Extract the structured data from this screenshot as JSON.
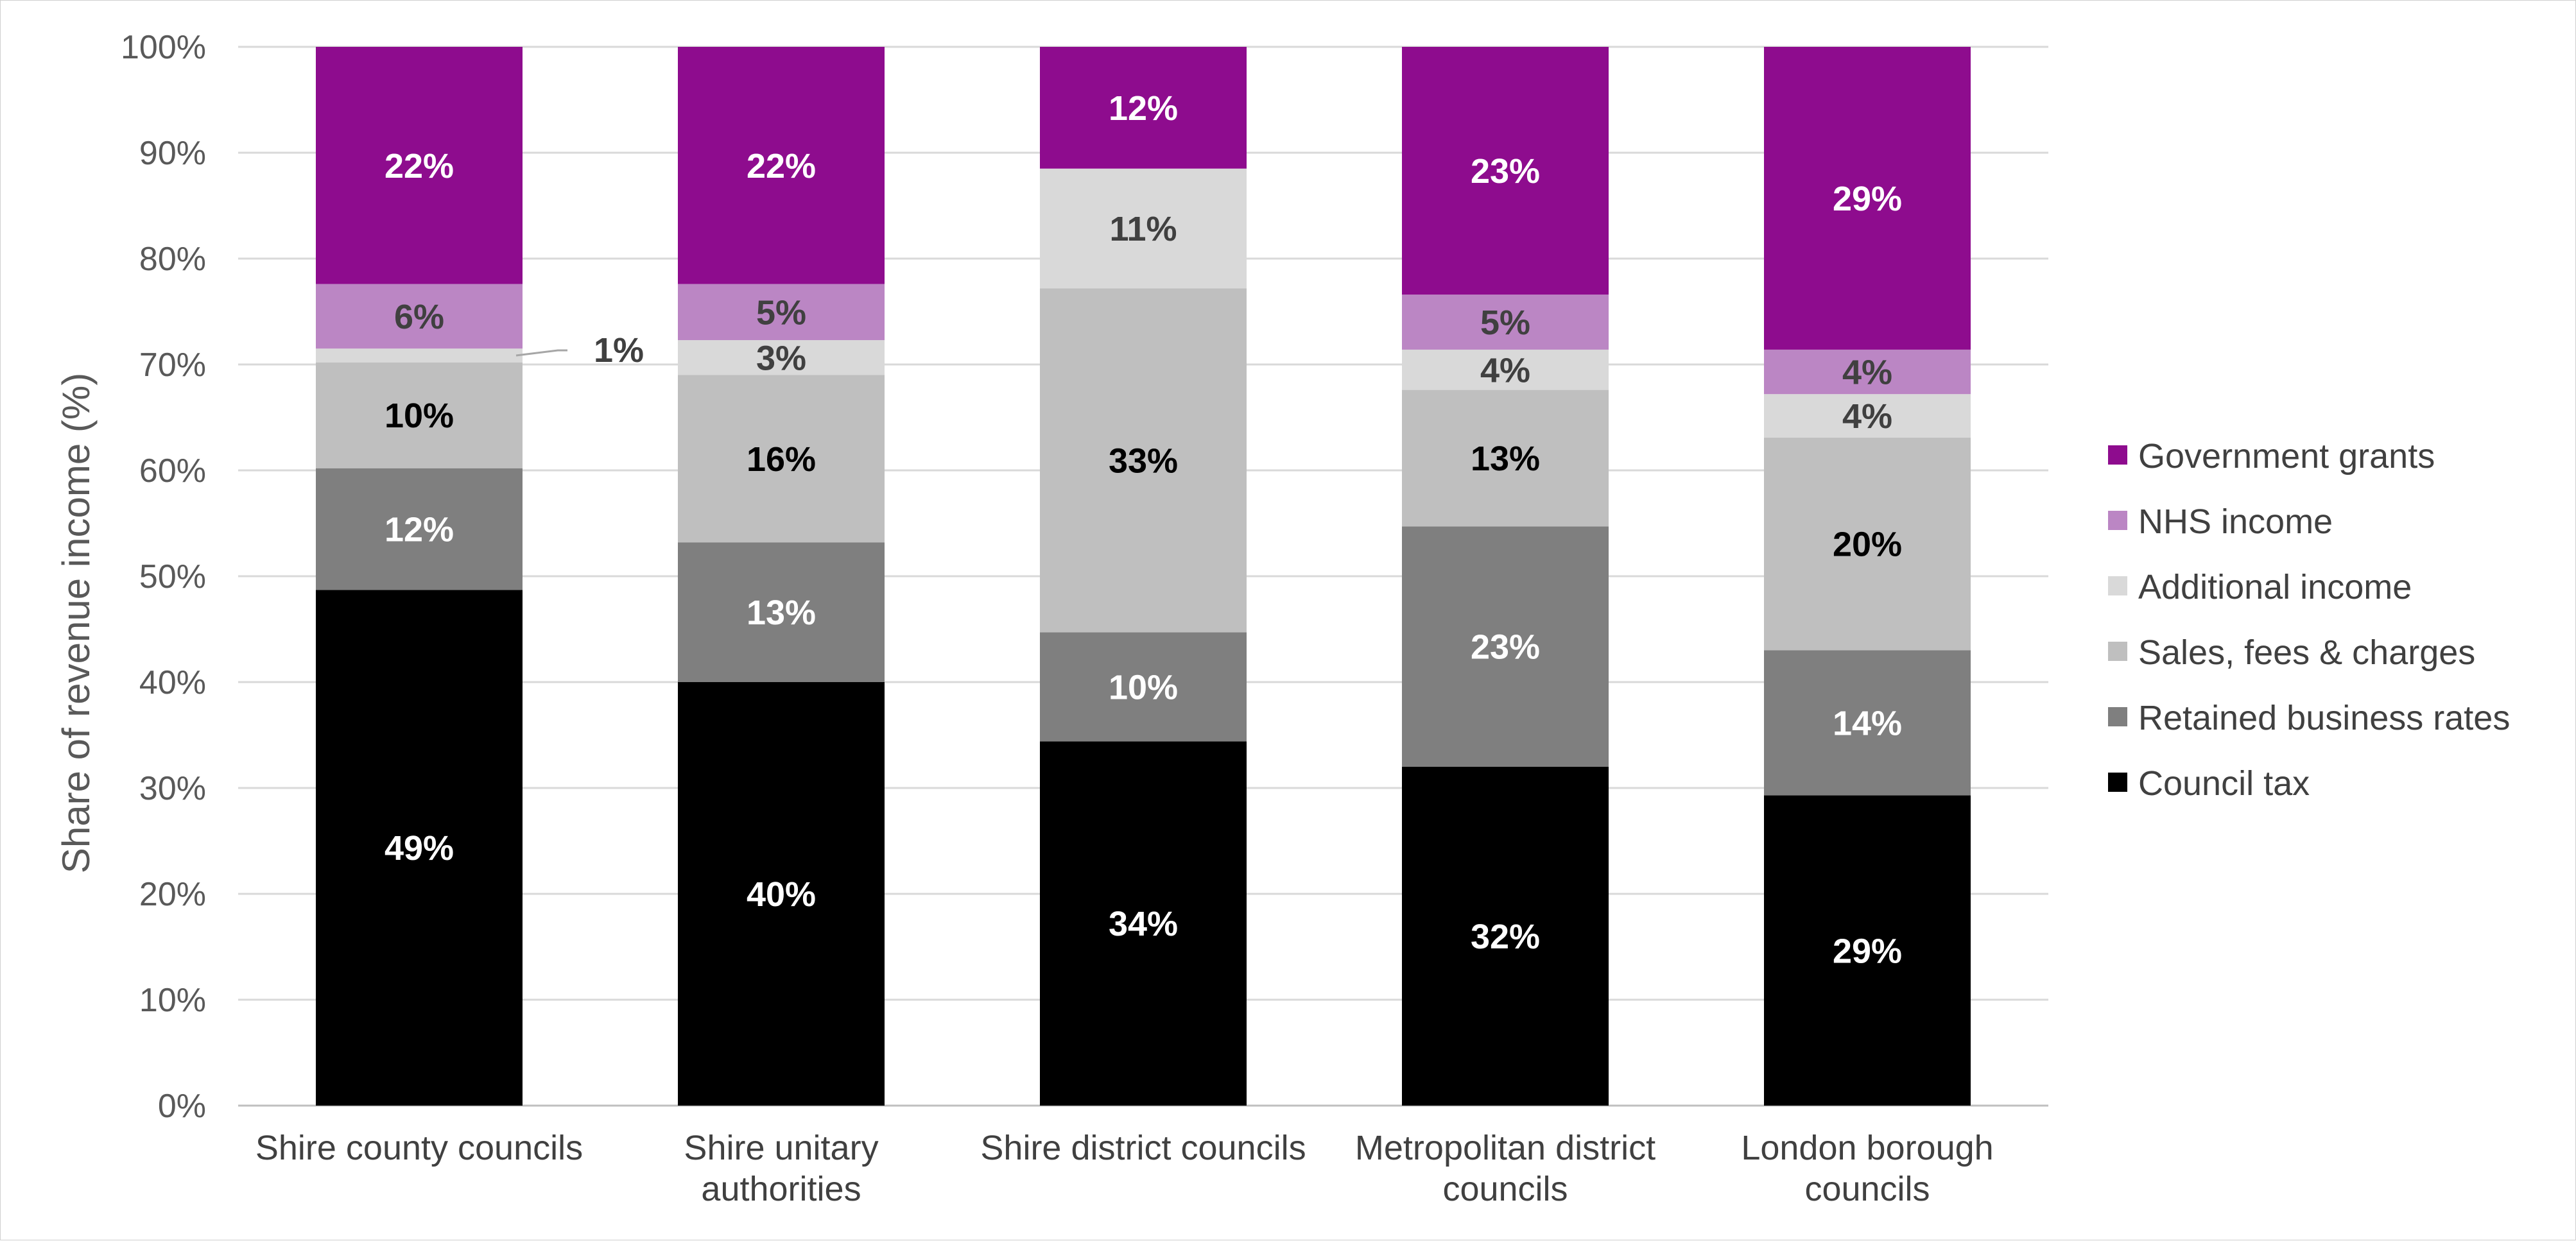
{
  "chart_data": {
    "type": "bar",
    "stacked": true,
    "title": "",
    "xlabel": "",
    "ylabel": "Share of revenue income (%)",
    "ylim": [
      0,
      100
    ],
    "yticks": [
      "0%",
      "10%",
      "20%",
      "30%",
      "40%",
      "50%",
      "60%",
      "70%",
      "80%",
      "90%",
      "100%"
    ],
    "grid": true,
    "legend_position": "right",
    "categories": [
      [
        "Shire county councils"
      ],
      [
        "Shire unitary",
        "authorities"
      ],
      [
        "Shire district councils"
      ],
      [
        "Metropolitan district",
        "councils"
      ],
      [
        "London borough",
        "councils"
      ]
    ],
    "series": [
      {
        "name": "Council tax",
        "color": "#000000",
        "label_color": "#ffffff",
        "values": [
          48.7,
          40.0,
          34.4,
          32.0,
          29.3
        ],
        "labels": [
          "49%",
          "40%",
          "34%",
          "32%",
          "29%"
        ]
      },
      {
        "name": "Retained business rates",
        "color": "#7f7f7f",
        "label_color": "#ffffff",
        "values": [
          11.5,
          13.2,
          10.3,
          22.7,
          13.7
        ],
        "labels": [
          "12%",
          "13%",
          "10%",
          "23%",
          "14%"
        ]
      },
      {
        "name": "Sales, fees & charges",
        "color": "#bfbfbf",
        "label_color": "#000000",
        "values": [
          10.0,
          15.8,
          32.5,
          12.9,
          20.1
        ],
        "labels": [
          "10%",
          "16%",
          "33%",
          "13%",
          "20%"
        ]
      },
      {
        "name": "Additional income",
        "color": "#d9d9d9",
        "label_color": "#404040",
        "values": [
          1.3,
          3.3,
          11.3,
          3.8,
          4.1
        ],
        "labels": [
          "1%",
          "3%",
          "11%",
          "4%",
          "4%"
        ]
      },
      {
        "name": "NHS income",
        "color": "#bb86c4",
        "label_color": "#404040",
        "values": [
          6.1,
          5.3,
          0.0,
          5.2,
          4.2
        ],
        "labels": [
          "6%",
          "5%",
          "",
          "5%",
          "4%"
        ]
      },
      {
        "name": "Government grants",
        "color": "#8e0c8e",
        "label_color": "#ffffff",
        "values": [
          22.4,
          22.4,
          11.5,
          23.4,
          28.6
        ],
        "labels": [
          "22%",
          "22%",
          "12%",
          "23%",
          "29%"
        ]
      }
    ],
    "legend_order": [
      "Government grants",
      "NHS income",
      "Additional income",
      "Sales, fees & charges",
      "Retained business rates",
      "Council tax"
    ]
  }
}
